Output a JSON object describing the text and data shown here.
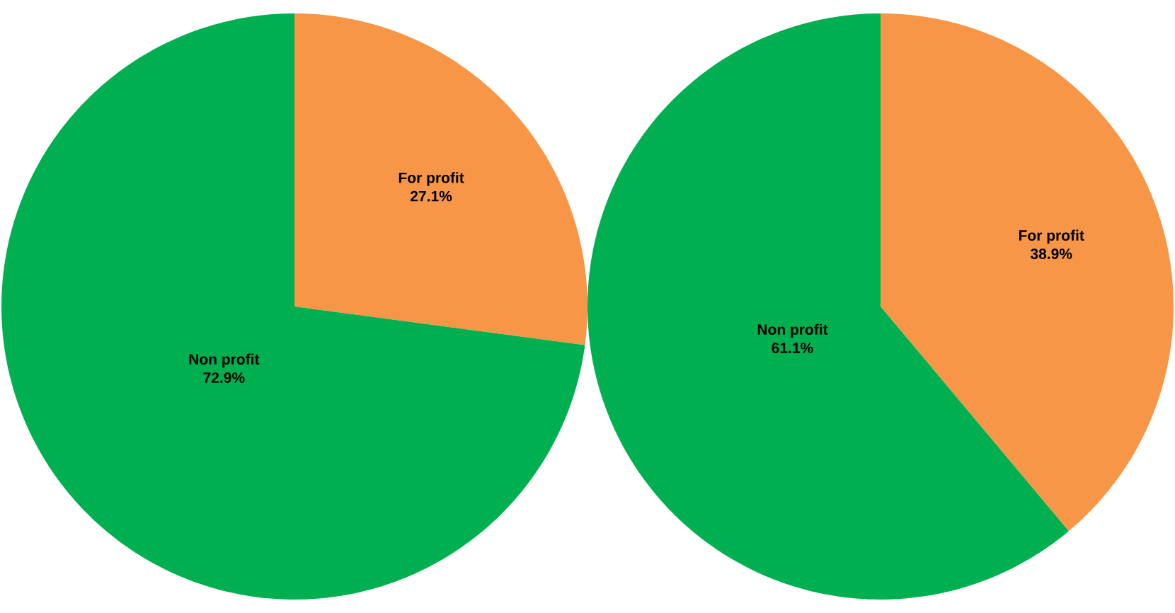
{
  "chart_data": [
    {
      "type": "pie",
      "categories": [
        "For profit",
        "Non profit"
      ],
      "values": [
        27.1,
        72.9
      ],
      "colors": [
        "#f79646",
        "#00b050"
      ],
      "value_labels": [
        "27.1%",
        "72.9%"
      ]
    },
    {
      "type": "pie",
      "categories": [
        "For profit",
        "Non profit"
      ],
      "values": [
        38.9,
        61.1
      ],
      "colors": [
        "#f79646",
        "#00b050"
      ],
      "value_labels": [
        "38.9%",
        "61.1%"
      ]
    }
  ]
}
